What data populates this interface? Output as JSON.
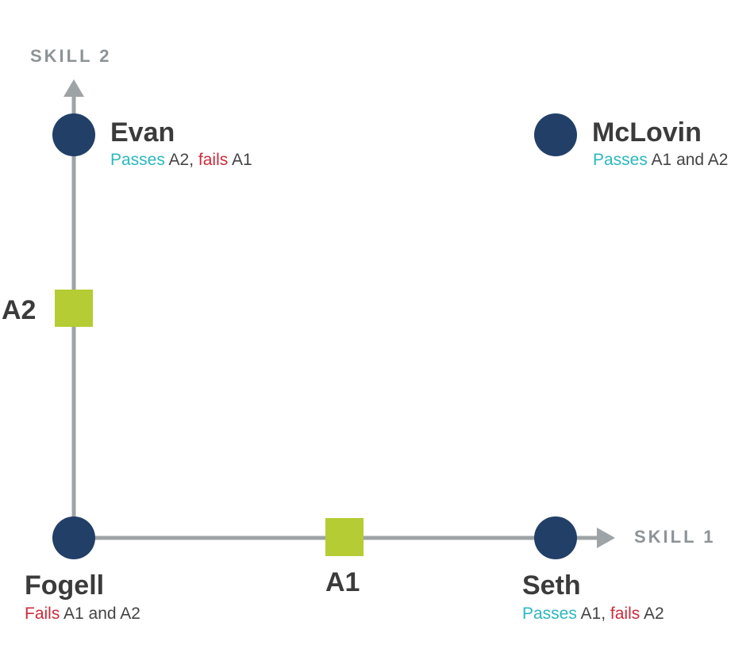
{
  "axes": {
    "x_label": "SKILL 1",
    "y_label": "SKILL 2"
  },
  "markers": {
    "a1": "A1",
    "a2": "A2"
  },
  "people": {
    "evan": {
      "name": "Evan",
      "status": [
        {
          "text": "Passes",
          "tone": "pass"
        },
        {
          "text": " A2, ",
          "tone": "neutral"
        },
        {
          "text": "fails",
          "tone": "fail"
        },
        {
          "text": " A1",
          "tone": "neutral"
        }
      ]
    },
    "mclovin": {
      "name": "McLovin",
      "status": [
        {
          "text": "Passes",
          "tone": "pass"
        },
        {
          "text": " A1 and A2",
          "tone": "neutral"
        }
      ]
    },
    "fogell": {
      "name": "Fogell",
      "status": [
        {
          "text": "Fails",
          "tone": "fail"
        },
        {
          "text": " A1 and A2",
          "tone": "neutral"
        }
      ]
    },
    "seth": {
      "name": "Seth",
      "status": [
        {
          "text": "Passes",
          "tone": "pass"
        },
        {
          "text": " A1, ",
          "tone": "neutral"
        },
        {
          "text": "fails",
          "tone": "fail"
        },
        {
          "text": " A2",
          "tone": "neutral"
        }
      ]
    }
  },
  "colors": {
    "axis": "#9ea3a6",
    "dot": "#223f68",
    "marker": "#b5cc34",
    "pass": "#2bb8bf",
    "fail": "#cc2b3b",
    "neutral": "#444444",
    "name": "#3b3b3b"
  }
}
